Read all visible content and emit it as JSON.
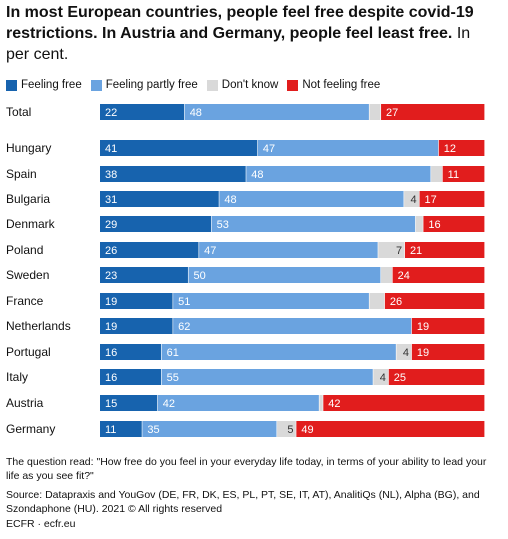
{
  "title": {
    "bold": "In most European countries, people feel free despite covid-19 restrictions. In Austria and Germany, people feel least free.",
    "rest": "In per cent."
  },
  "note": "The question read: \"How free do you feel in your everyday life today, in terms of your ability to lead your life as you see fit?\"",
  "source": "Source: Datapraxis and YouGov (DE, FR, DK, ES, PL, PT, SE, IT, AT), AnalitiQs (NL), Alpha (BG), and Szondaphone (HU). 2021 © All rights reserved",
  "credit": "ECFR · ecfr.eu",
  "chart_data": {
    "type": "bar",
    "orientation": "horizontal",
    "stacked": true,
    "categories": [
      "Total",
      "Hungary",
      "Spain",
      "Bulgaria",
      "Denmark",
      "Poland",
      "Sweden",
      "France",
      "Netherlands",
      "Portugal",
      "Italy",
      "Austria",
      "Germany"
    ],
    "series": [
      {
        "name": "Feeling free",
        "color": "#1763ae",
        "values": [
          22,
          41,
          38,
          31,
          29,
          26,
          23,
          19,
          19,
          16,
          16,
          15,
          11
        ]
      },
      {
        "name": "Feeling partly free",
        "color": "#6aa3e0",
        "values": [
          48,
          47,
          48,
          48,
          53,
          47,
          50,
          51,
          62,
          61,
          55,
          42,
          35
        ]
      },
      {
        "name": "Don't know",
        "color": "#d9d9d9",
        "values": [
          3,
          0,
          3,
          4,
          2,
          7,
          3,
          4,
          0,
          4,
          4,
          1,
          5
        ]
      },
      {
        "name": "Not feeling free",
        "color": "#e11d1d",
        "values": [
          27,
          12,
          11,
          17,
          16,
          21,
          24,
          26,
          19,
          19,
          25,
          42,
          49
        ]
      }
    ],
    "labels": [
      [
        "22",
        "48",
        "",
        "27"
      ],
      [
        "41",
        "47",
        "",
        "12"
      ],
      [
        "38",
        "48",
        "",
        "11"
      ],
      [
        "31",
        "48",
        "4",
        "17"
      ],
      [
        "29",
        "53",
        "",
        "16"
      ],
      [
        "26",
        "47",
        "7",
        "21"
      ],
      [
        "23",
        "50",
        "",
        "24"
      ],
      [
        "19",
        "51",
        "",
        "26"
      ],
      [
        "19",
        "62",
        "",
        "19"
      ],
      [
        "16",
        "61",
        "4",
        "19"
      ],
      [
        "16",
        "55",
        "4",
        "25"
      ],
      [
        "15",
        "42",
        "",
        "42"
      ],
      [
        "11",
        "35",
        "5",
        "49"
      ]
    ],
    "xlim": [
      0,
      100
    ],
    "legend_position": "top-left"
  }
}
